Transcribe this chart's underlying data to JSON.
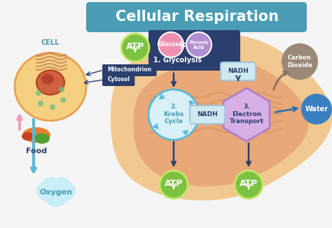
{
  "title": "Cellular Respiration",
  "title_color": "#ffffff",
  "title_bg": "#4a9db5",
  "bg_color": "#f5f5f5",
  "labels": {
    "cell": "CELL",
    "mitochondrion": "Mitochondrion",
    "cytosol": "Cytosol",
    "food": "Food",
    "oxygen": "Oxygen",
    "glucose": "Glucose",
    "pyruvic_acid": "Pyruvic\nAcid",
    "glycolysis": "1. Glycolysis",
    "nadh1": "NADH",
    "nadh2": "NADH",
    "krebs": "2.\nKrebs\nCycle",
    "electron": "3.\nElectron\nTransport",
    "carbon_dioxide": "Carbon\nDioxide",
    "water": "Water",
    "atp1": "ATP",
    "atp2": "ATP",
    "atp3": "ATP"
  },
  "atp_green": "#7dc242",
  "atp_circle": "#c8e86a",
  "glucose_pink": "#f090b0",
  "pyruvic_purple": "#b090d0",
  "glycolysis_navy": "#2a3f6e",
  "nadh_bg": "#d0e8f0",
  "nadh_border": "#a0c8e0",
  "krebs_circle_bg": "#d8f0f8",
  "krebs_arrows": "#5ab8d5",
  "electron_hex": "#d8b0e8",
  "electron_border": "#b080c8",
  "mito_outer": "#f0c890",
  "mito_inner": "#e8a878",
  "mito_cristae": "#d89060",
  "cell_body": "#f5d080",
  "cell_border": "#e8a050",
  "arrow_dark": "#2a3f6e",
  "arrow_teal": "#5ab8d5",
  "arrow_brown": "#8a7060",
  "arrow_blue": "#3070b0",
  "carbon_dioxide_gray": "#9a8878",
  "water_blue": "#3a80c0",
  "oxygen_cloud": "#c8eef8",
  "connector_dots": "#d0e8d8"
}
